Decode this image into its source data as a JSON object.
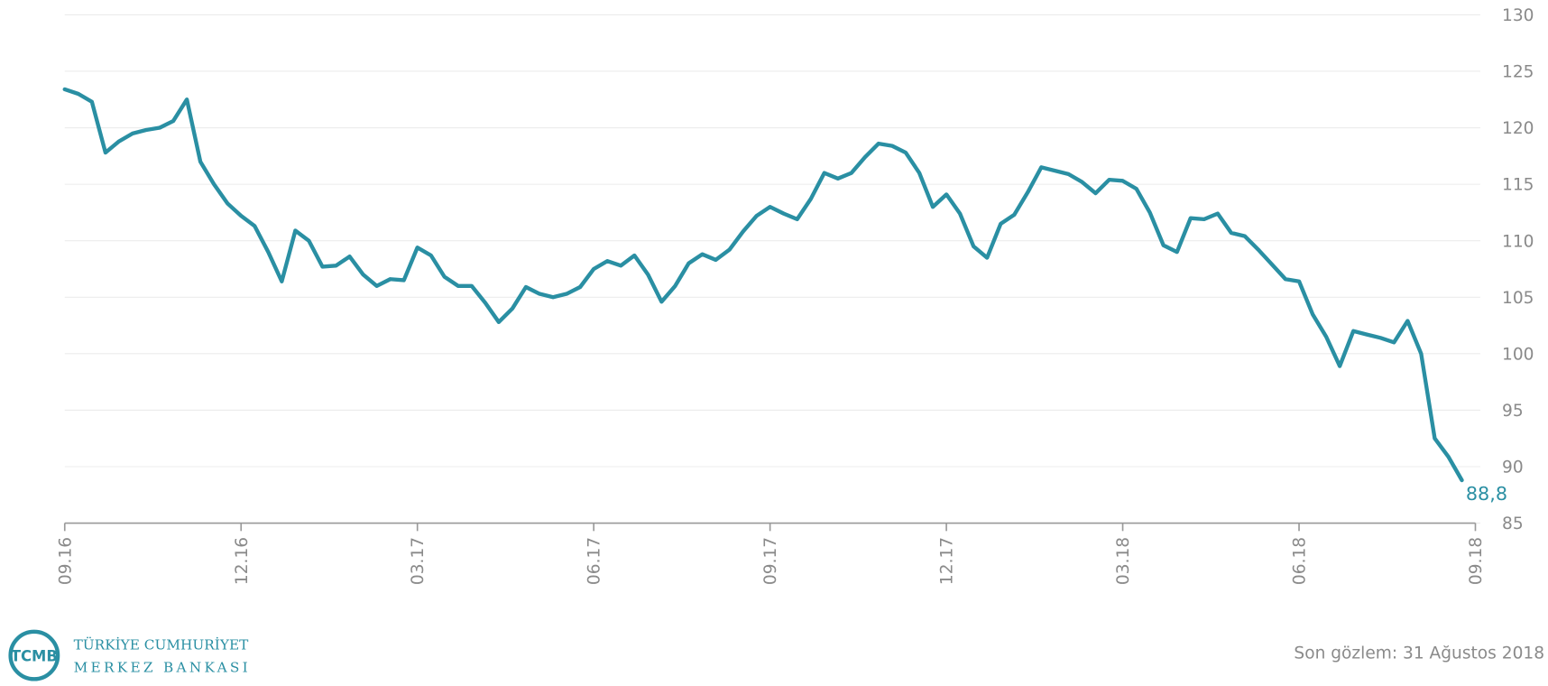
{
  "chart_data": {
    "type": "line",
    "categories": [
      "09.16",
      null,
      null,
      null,
      null,
      null,
      null,
      null,
      null,
      null,
      null,
      null,
      null,
      "12.16",
      null,
      null,
      null,
      null,
      null,
      null,
      null,
      null,
      null,
      null,
      null,
      null,
      "03.17",
      null,
      null,
      null,
      null,
      null,
      null,
      null,
      null,
      null,
      null,
      null,
      null,
      "06.17",
      null,
      null,
      null,
      null,
      null,
      null,
      null,
      null,
      null,
      null,
      null,
      null,
      "09.17",
      null,
      null,
      null,
      null,
      null,
      null,
      null,
      null,
      null,
      null,
      null,
      null,
      "12.17",
      null,
      null,
      null,
      null,
      null,
      null,
      null,
      null,
      null,
      null,
      null,
      null,
      "03.18",
      null,
      null,
      null,
      null,
      null,
      null,
      null,
      null,
      null,
      null,
      null,
      null,
      "06.18",
      null,
      null,
      null,
      null,
      null,
      null,
      null,
      null,
      null,
      null,
      null,
      null,
      "09.18"
    ],
    "values": [
      123.4,
      123,
      122.3,
      117.8,
      118.8,
      119.5,
      119.8,
      120,
      120.6,
      122.5,
      117,
      115,
      113.3,
      112.2,
      111.3,
      109,
      106.4,
      110.9,
      110,
      107.7,
      107.8,
      108.6,
      107,
      106,
      106.6,
      106.5,
      109.4,
      108.7,
      106.8,
      106,
      106,
      104.5,
      102.8,
      104,
      105.9,
      105.3,
      105,
      105.3,
      105.9,
      107.5,
      108.2,
      107.8,
      108.7,
      107,
      104.6,
      106,
      108,
      108.8,
      108.3,
      109.2,
      110.8,
      112.2,
      113,
      112.4,
      111.9,
      113.7,
      116,
      115.5,
      116,
      117.4,
      118.6,
      118.4,
      117.8,
      116,
      113,
      114.1,
      112.4,
      109.5,
      108.5,
      111.5,
      112.3,
      114.3,
      116.5,
      116.2,
      115.9,
      115.2,
      114.2,
      115.4,
      115.3,
      114.6,
      112.5,
      109.6,
      109,
      112,
      111.9,
      112.4,
      110.7,
      110.4,
      109.2,
      107.9,
      106.6,
      106.4,
      103.5,
      101.5,
      98.9,
      102,
      101.7,
      101.4,
      101,
      102.9,
      100,
      92.5,
      90.9,
      88.8,
      null
    ],
    "value_labels": [
      null,
      null,
      null,
      null,
      null,
      null,
      null,
      null,
      null,
      null,
      null,
      null,
      null,
      null,
      null,
      null,
      null,
      null,
      null,
      null,
      null,
      null,
      null,
      null,
      null,
      null,
      null,
      null,
      null,
      null,
      null,
      null,
      null,
      null,
      null,
      null,
      null,
      null,
      null,
      null,
      null,
      null,
      null,
      null,
      null,
      null,
      null,
      null,
      null,
      null,
      null,
      null,
      null,
      null,
      null,
      null,
      null,
      null,
      null,
      null,
      null,
      null,
      null,
      null,
      null,
      null,
      null,
      null,
      null,
      null,
      null,
      null,
      null,
      null,
      null,
      null,
      null,
      null,
      null,
      null,
      null,
      null,
      null,
      null,
      null,
      null,
      null,
      null,
      null,
      null,
      null,
      null,
      null,
      null,
      null,
      null,
      null,
      null,
      null,
      null,
      null,
      null,
      null,
      "88,8",
      null
    ],
    "color": "#2a8fa3",
    "ylim": [
      85,
      130
    ],
    "yticks": [
      85,
      90,
      95,
      100,
      105,
      110,
      115,
      120,
      125,
      130
    ],
    "grid": true,
    "footnote": "Son gözlem: 31 Ağustos 2018",
    "logo": {
      "mark": "TCMB",
      "line1": "TÜRKİYE CUMHURİYET",
      "line2": "MERKEZ BANKASI"
    }
  }
}
